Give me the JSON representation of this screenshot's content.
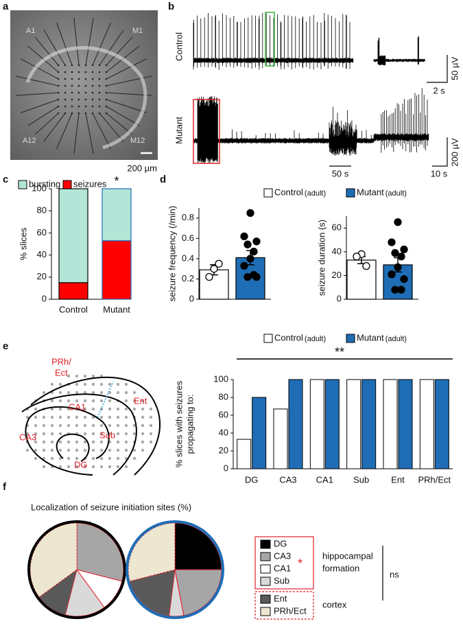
{
  "panels": [
    "a",
    "b",
    "c",
    "d",
    "e",
    "f"
  ],
  "image": {
    "scale_bar": "200 µm",
    "electrodes": [
      "A1",
      "M1",
      "A12",
      "M12"
    ]
  },
  "traces": {
    "rows": [
      "Control",
      "Mutant"
    ],
    "control_voltage": "50 µV",
    "control_inset_time": "2 s",
    "mutant_time": "50 s",
    "mutant_inset_time": "10 s",
    "mutant_voltage": "200 µV"
  },
  "diagram": {
    "regions": [
      "PRh/",
      "Ect",
      "CA1",
      "Ent",
      "CA3",
      "Sub",
      "DG"
    ]
  },
  "pie_title": "Localization of seizure initiation sites (%)",
  "pie_legend": {
    "groups": [
      {
        "lines": [
          "hippocampal",
          "formation"
        ],
        "marker": "*"
      },
      {
        "lines": [
          "cortex"
        ]
      }
    ],
    "comparison": "ns"
  },
  "chart_data": [
    {
      "type": "stacked_bar",
      "categories": [
        "Control",
        "Mutant"
      ],
      "edge_colors": [
        "#000000",
        "#1f6db5"
      ],
      "series": [
        {
          "name": "bursting",
          "color": "#b3e6d6",
          "values": [
            85,
            47
          ]
        },
        {
          "name": "seizures",
          "color": "#ff0000",
          "values": [
            15,
            53
          ]
        }
      ],
      "y_label": "% slices",
      "ylim": [
        0,
        100
      ],
      "yticks": [
        0,
        20,
        40,
        60,
        80,
        100
      ],
      "annotation": "*"
    },
    {
      "type": "bar",
      "categories": [
        "Control",
        "Mutant"
      ],
      "colors": [
        "#ffffff",
        "#1f6db5"
      ],
      "note": "(adult)",
      "values": [
        0.29,
        0.41
      ],
      "errors": [
        0.05,
        0.07
      ],
      "points": [
        [
          0.3,
          0.22,
          0.35
        ],
        [
          0.85,
          0.62,
          0.57,
          0.54,
          0.47,
          0.4,
          0.33,
          0.22,
          0.22,
          0.24
        ]
      ],
      "y_label": "seizure frequency (/min)",
      "ylim": [
        0,
        0.9
      ],
      "yticks": [
        0,
        0.2,
        0.4,
        0.6,
        0.8
      ]
    },
    {
      "type": "bar",
      "categories": [
        "Control",
        "Mutant"
      ],
      "colors": [
        "#ffffff",
        "#1f6db5"
      ],
      "values": [
        33,
        29
      ],
      "errors": [
        3,
        6
      ],
      "points": [
        [
          38,
          36,
          28
        ],
        [
          65,
          48,
          42,
          39,
          36,
          27,
          21,
          17,
          8,
          8
        ]
      ],
      "y_label": "seizure duration (s)",
      "ylim": [
        0,
        70
      ],
      "yticks": [
        0,
        20,
        40,
        60
      ]
    },
    {
      "type": "grouped_bar",
      "categories": [
        "DG",
        "CA3",
        "CA1",
        "Sub",
        "Ent",
        "PRh/Ect"
      ],
      "note": "(adult)",
      "series": [
        {
          "name": "Control",
          "color": "#ffffff",
          "values": [
            33,
            67,
            100,
            100,
            100,
            100
          ]
        },
        {
          "name": "Mutant",
          "color": "#1f6db5",
          "values": [
            80,
            100,
            100,
            100,
            100,
            100
          ]
        }
      ],
      "y_label": [
        "% slices with seizures",
        "propagating to:"
      ],
      "ylim": [
        0,
        100
      ],
      "yticks": [
        0,
        20,
        40,
        60,
        80,
        100
      ],
      "annotation": "**"
    },
    {
      "type": "pie",
      "title": "Control",
      "ring_color": "#000000",
      "categories": [
        "DG",
        "CA3",
        "CA1",
        "Sub",
        "Ent",
        "PRh/Ect"
      ],
      "colors": [
        "#000000",
        "#a6a6a6",
        "#ffffff",
        "#d9d9d9",
        "#595959",
        "#ede6d0"
      ],
      "values": [
        0,
        29,
        11,
        14,
        11,
        35
      ]
    },
    {
      "type": "pie",
      "title": "Mutant",
      "ring_color": "#1f6db5",
      "categories": [
        "DG",
        "CA3",
        "CA1",
        "Sub",
        "Ent",
        "PRh/Ect"
      ],
      "colors": [
        "#000000",
        "#a6a6a6",
        "#ffffff",
        "#d9d9d9",
        "#595959",
        "#ede6d0"
      ],
      "values": [
        25,
        22,
        0,
        5,
        19,
        29
      ]
    }
  ]
}
